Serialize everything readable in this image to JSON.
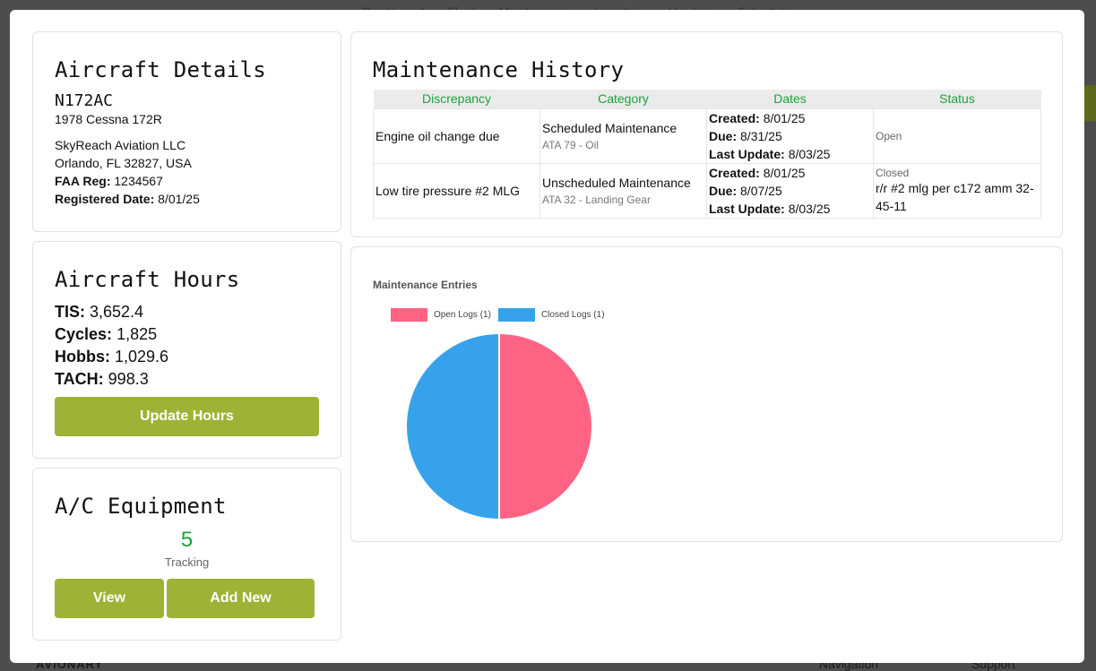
{
  "background": {
    "nav_text": "Dashboard  Fleet  Maintenance  Inventory  Vendors  Schedule",
    "logo": "AVIONARY",
    "footer_links": "Navigation Support"
  },
  "details": {
    "title": "Aircraft Details",
    "tail": "N172AC",
    "model": "1978 Cessna 172R",
    "owner": "SkyReach Aviation LLC",
    "location": "Orlando, FL 32827, USA",
    "faa_label": "FAA Reg:",
    "faa_value": "1234567",
    "registered_label": "Registered Date:",
    "registered_value": "8/01/25"
  },
  "hours": {
    "title": "Aircraft Hours",
    "tis_label": "TIS:",
    "tis": "3,652.4",
    "cycles_label": "Cycles:",
    "cycles": "1,825",
    "hobbs_label": "Hobbs:",
    "hobbs": "1,029.6",
    "tach_label": "TACH:",
    "tach": "998.3",
    "update_button": "Update Hours"
  },
  "equipment": {
    "title": "A/C Equipment",
    "count": "5",
    "count_label": "Tracking",
    "view_button": "View",
    "add_button": "Add New"
  },
  "history": {
    "title": "Maintenance History",
    "columns": [
      "Discrepancy",
      "Category",
      "Dates",
      "Status"
    ],
    "created_label": "Created:",
    "due_label": "Due:",
    "updated_label": "Last Update:",
    "rows": [
      {
        "discrepancy": "Engine oil change due",
        "category": "Scheduled Maintenance",
        "ata": "ATA 79 - Oil",
        "created": "8/01/25",
        "due": "8/31/25",
        "updated": "8/03/25",
        "status": "Open",
        "note": ""
      },
      {
        "discrepancy": "Low tire pressure #2 MLG",
        "category": "Unscheduled Maintenance",
        "ata": "ATA 32 - Landing Gear",
        "created": "8/01/25",
        "due": "8/07/25",
        "updated": "8/03/25",
        "status": "Closed",
        "note": "r/r #2 mlg per c172 amm 32-45-11"
      }
    ]
  },
  "chart_data": {
    "type": "pie",
    "title": "Maintenance Entries",
    "categories": [
      "Open Logs (1)",
      "Closed Logs (1)"
    ],
    "values": [
      1,
      1
    ],
    "colors": [
      "#ff6384",
      "#36a2eb"
    ],
    "legend": "top-left"
  }
}
